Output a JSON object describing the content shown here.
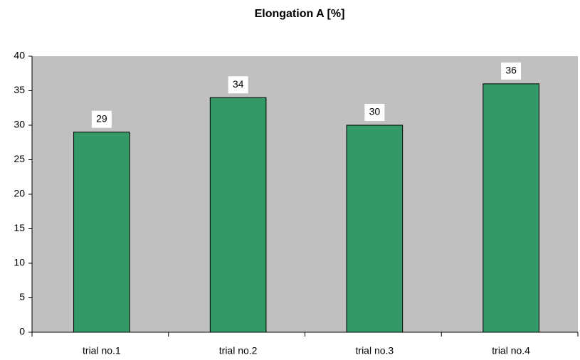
{
  "chart_data": {
    "type": "bar",
    "title": "Elongation A [%]",
    "categories": [
      "trial no.1",
      "trial no.2",
      "trial no.3",
      "trial no.4"
    ],
    "values": [
      29,
      34,
      30,
      36
    ],
    "color": "#339966",
    "plot_background": "#c0c0c0",
    "ylim": [
      0,
      40
    ],
    "yticks": [
      0,
      5,
      10,
      15,
      20,
      25,
      30,
      35,
      40
    ],
    "grid": false
  }
}
